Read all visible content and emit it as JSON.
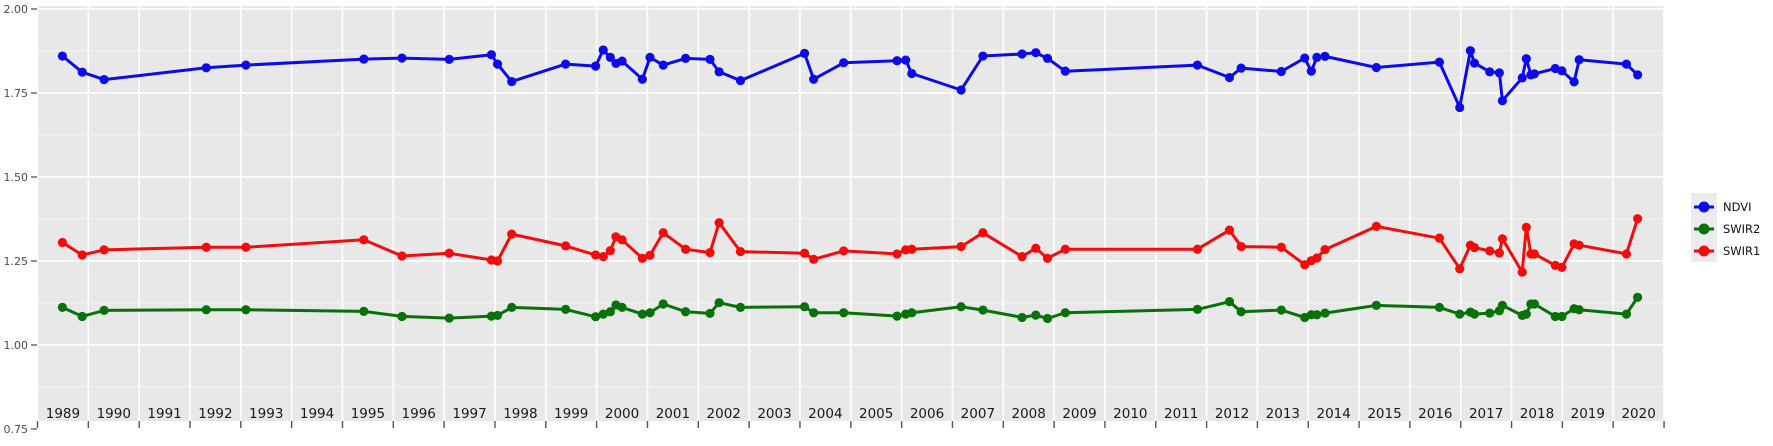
{
  "chart": {
    "colors": {
      "panel_bg": "#E8E8E8",
      "grid_major": "#FFFFFF",
      "grid_minor": "#F5F5F5",
      "tick_color": "#555555",
      "x_label_color": "#1a1a1a",
      "y_label_color": "#4d4d4d",
      "legend_key_bg": "#EBEBEB",
      "legend_text": "#111111"
    }
  },
  "legend": {
    "items": [
      {
        "label": "NDVI"
      },
      {
        "label": "SWIR2"
      },
      {
        "label": "SWIR1"
      }
    ]
  },
  "chart_data": {
    "type": "line",
    "title": "",
    "xlabel": "",
    "ylabel": "",
    "grid": true,
    "legend_position": "right",
    "xlim": [
      1989,
      2021
    ],
    "ylim": [
      0.776,
      2.0
    ],
    "x_tick_years": [
      1989,
      1990,
      1991,
      1992,
      1993,
      1994,
      1995,
      1996,
      1997,
      1998,
      1999,
      2000,
      2001,
      2002,
      2003,
      2004,
      2005,
      2006,
      2007,
      2008,
      2009,
      2010,
      2011,
      2012,
      2013,
      2014,
      2015,
      2016,
      2017,
      2018,
      2019,
      2020
    ],
    "y_ticks": [
      0.75,
      1.0,
      1.25,
      1.5,
      1.75,
      2.0
    ],
    "y_minor_ticks": [
      0.875,
      1.125,
      1.375,
      1.625,
      1.875
    ],
    "x": [
      1989.49,
      1989.88,
      1990.31,
      1992.32,
      1993.1,
      1995.42,
      1996.17,
      1997.1,
      1997.93,
      1998.05,
      1998.33,
      1999.39,
      1999.98,
      2000.13,
      2000.27,
      2000.38,
      2000.5,
      2000.9,
      2001.05,
      2001.31,
      2001.75,
      2002.23,
      2002.41,
      2002.83,
      2004.09,
      2004.27,
      2004.86,
      2005.91,
      2006.08,
      2006.2,
      2007.17,
      2007.6,
      2008.37,
      2008.64,
      2008.87,
      2009.22,
      2011.82,
      2012.45,
      2012.68,
      2013.47,
      2013.93,
      2014.06,
      2014.17,
      2014.33,
      2015.34,
      2016.58,
      2016.98,
      2017.19,
      2017.27,
      2017.57,
      2017.76,
      2017.82,
      2018.21,
      2018.29,
      2018.38,
      2018.45,
      2018.86,
      2018.99,
      2019.23,
      2019.33,
      2020.26,
      2020.48
    ],
    "series": [
      {
        "name": "NDVI",
        "color": "#0B0BEE",
        "values": [
          1.86,
          1.812,
          1.79,
          1.825,
          1.833,
          1.851,
          1.854,
          1.85,
          1.864,
          1.836,
          1.784,
          1.836,
          1.83,
          1.878,
          1.856,
          1.838,
          1.845,
          1.791,
          1.856,
          1.833,
          1.853,
          1.85,
          1.813,
          1.787,
          1.868,
          1.791,
          1.84,
          1.846,
          1.848,
          1.808,
          1.759,
          1.86,
          1.866,
          1.87,
          1.853,
          1.815,
          1.833,
          1.796,
          1.824,
          1.814,
          1.854,
          1.815,
          1.856,
          1.859,
          1.826,
          1.842,
          1.707,
          1.876,
          1.839,
          1.813,
          1.81,
          1.727,
          1.795,
          1.852,
          1.804,
          1.807,
          1.823,
          1.816,
          1.783,
          1.849,
          1.836,
          1.804
        ]
      },
      {
        "name": "SWIR2",
        "color": "#077207",
        "values": [
          1.112,
          1.085,
          1.103,
          1.105,
          1.105,
          1.1,
          1.085,
          1.08,
          1.086,
          1.088,
          1.112,
          1.106,
          1.084,
          1.092,
          1.099,
          1.119,
          1.112,
          1.092,
          1.096,
          1.122,
          1.099,
          1.094,
          1.126,
          1.112,
          1.114,
          1.096,
          1.096,
          1.086,
          1.092,
          1.096,
          1.114,
          1.104,
          1.082,
          1.089,
          1.079,
          1.096,
          1.106,
          1.129,
          1.099,
          1.104,
          1.082,
          1.09,
          1.09,
          1.095,
          1.118,
          1.112,
          1.092,
          1.098,
          1.092,
          1.095,
          1.102,
          1.118,
          1.088,
          1.092,
          1.122,
          1.122,
          1.085,
          1.085,
          1.108,
          1.105,
          1.092,
          1.142
        ]
      },
      {
        "name": "SWIR1",
        "color": "#F60A0A",
        "values": [
          1.305,
          1.268,
          1.283,
          1.291,
          1.291,
          1.313,
          1.265,
          1.273,
          1.253,
          1.25,
          1.33,
          1.295,
          1.268,
          1.263,
          1.281,
          1.322,
          1.313,
          1.258,
          1.267,
          1.334,
          1.285,
          1.275,
          1.364,
          1.278,
          1.273,
          1.255,
          1.28,
          1.271,
          1.283,
          1.285,
          1.293,
          1.334,
          1.263,
          1.288,
          1.258,
          1.285,
          1.285,
          1.342,
          1.293,
          1.291,
          1.239,
          1.251,
          1.259,
          1.284,
          1.353,
          1.318,
          1.227,
          1.297,
          1.29,
          1.28,
          1.274,
          1.316,
          1.217,
          1.35,
          1.271,
          1.271,
          1.237,
          1.231,
          1.301,
          1.297,
          1.271,
          1.376
        ]
      }
    ]
  }
}
